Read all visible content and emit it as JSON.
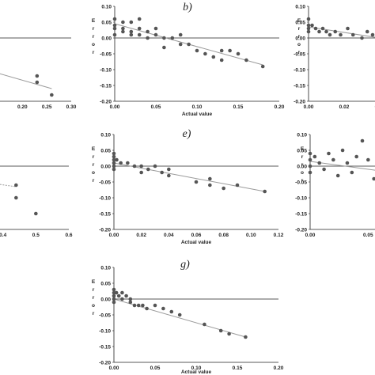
{
  "chart_data": [
    {
      "id": "a",
      "type": "scatter",
      "panel_label": "",
      "xlabel": "",
      "ylabel": "",
      "xlim": [
        0,
        0.3
      ],
      "ylim": [
        -0.2,
        0.1
      ],
      "xticks": [
        "0.20",
        "0.25",
        "0.30"
      ],
      "yticks": [],
      "x": [
        0.23,
        0.23,
        0.26
      ],
      "y": [
        -0.12,
        -0.14,
        -0.18
      ],
      "trendline": {
        "x": [
          0.0,
          0.26
        ],
        "y": [
          -0.045,
          -0.16
        ]
      }
    },
    {
      "id": "b",
      "type": "scatter",
      "panel_label": "b)",
      "xlabel": "Actual value",
      "ylabel": "Error",
      "xlim": [
        0,
        0.2
      ],
      "ylim": [
        -0.2,
        0.1
      ],
      "xticks": [
        "0.00",
        "0.05",
        "0.10",
        "0.15",
        "0.20"
      ],
      "yticks": [
        "0.10",
        "0.05",
        "0.00",
        "-0.05",
        "-0.10",
        "-0.15",
        "-0.20"
      ],
      "x": [
        0.0,
        0.0,
        0.0,
        0.0,
        0.01,
        0.01,
        0.01,
        0.02,
        0.02,
        0.02,
        0.03,
        0.03,
        0.03,
        0.04,
        0.04,
        0.05,
        0.05,
        0.06,
        0.06,
        0.07,
        0.08,
        0.08,
        0.09,
        0.1,
        0.11,
        0.12,
        0.13,
        0.13,
        0.14,
        0.15,
        0.16,
        0.18
      ],
      "y": [
        0.06,
        0.04,
        0.03,
        0.01,
        0.05,
        0.03,
        0.02,
        0.05,
        0.02,
        0.01,
        0.06,
        0.03,
        0.01,
        0.02,
        0.0,
        0.03,
        0.01,
        0.0,
        -0.03,
        0.0,
        0.01,
        -0.02,
        -0.02,
        -0.04,
        -0.05,
        -0.06,
        -0.04,
        -0.07,
        -0.04,
        -0.05,
        -0.07,
        -0.09
      ],
      "trendline": {
        "x": [
          0.0,
          0.18
        ],
        "y": [
          0.045,
          -0.085
        ]
      }
    },
    {
      "id": "c",
      "type": "scatter",
      "panel_label": "",
      "xlabel": "",
      "ylabel": "Error",
      "xlim": [
        0,
        0.04
      ],
      "ylim": [
        -0.2,
        0.1
      ],
      "xticks": [
        "0.00",
        "0.02",
        "0.04"
      ],
      "yticks": [
        "0.10",
        "0.05",
        "0.00",
        "-0.05",
        "-0.10",
        "-0.15",
        "-0.20"
      ],
      "x": [
        0.0,
        0.0,
        0.0,
        0.0,
        0.002,
        0.004,
        0.006,
        0.008,
        0.01,
        0.012,
        0.015,
        0.018,
        0.022,
        0.025,
        0.03,
        0.033,
        0.036,
        0.04
      ],
      "y": [
        0.06,
        0.04,
        0.03,
        0.02,
        0.04,
        0.03,
        0.02,
        0.03,
        0.02,
        0.01,
        0.02,
        0.01,
        0.03,
        0.01,
        0.0,
        0.02,
        0.01,
        0.0
      ],
      "trendline": {
        "x": [
          0.0,
          0.04
        ],
        "y": [
          0.035,
          0.0
        ]
      }
    },
    {
      "id": "d",
      "type": "scatter",
      "panel_label": "",
      "xlabel": "",
      "ylabel": "",
      "xlim": [
        0,
        0.6
      ],
      "ylim": [
        -0.2,
        0.1
      ],
      "xticks": [
        "0.4",
        "0.5",
        "0.6"
      ],
      "yticks": [],
      "x": [
        0.44,
        0.44,
        0.5
      ],
      "y": [
        -0.06,
        -0.1,
        -0.15
      ],
      "trendline": {
        "x": [
          0.0,
          0.44
        ],
        "y": [
          -0.0,
          -0.065
        ]
      }
    },
    {
      "id": "e",
      "type": "scatter",
      "panel_label": "e)",
      "xlabel": "Actual value",
      "ylabel": "Error",
      "xlim": [
        0,
        0.12
      ],
      "ylim": [
        -0.2,
        0.1
      ],
      "xticks": [
        "0.00",
        "0.02",
        "0.04",
        "0.06",
        "0.08",
        "0.10",
        "0.12"
      ],
      "yticks": [
        "0.10",
        "0.05",
        "0.00",
        "-0.05",
        "-0.10",
        "-0.15",
        "-0.20"
      ],
      "x": [
        0.0,
        0.0,
        0.0,
        0.0,
        0.0,
        0.0,
        0.002,
        0.005,
        0.01,
        0.015,
        0.02,
        0.02,
        0.025,
        0.03,
        0.035,
        0.04,
        0.04,
        0.06,
        0.07,
        0.07,
        0.08,
        0.09,
        0.11
      ],
      "y": [
        0.04,
        0.03,
        0.02,
        0.01,
        0.0,
        -0.01,
        0.02,
        0.01,
        0.01,
        0.0,
        0.0,
        -0.02,
        -0.01,
        0.0,
        -0.02,
        -0.01,
        -0.03,
        -0.05,
        -0.04,
        -0.06,
        -0.07,
        -0.06,
        -0.08
      ],
      "trendline": {
        "x": [
          0.0,
          0.11
        ],
        "y": [
          0.01,
          -0.08
        ]
      }
    },
    {
      "id": "f",
      "type": "scatter",
      "panel_label": "",
      "xlabel": "",
      "ylabel": "Error",
      "xlim": [
        0,
        0.06
      ],
      "ylim": [
        -0.2,
        0.1
      ],
      "xticks": [
        "0.00",
        "0.05"
      ],
      "yticks": [
        "0.10",
        "0.05",
        "0.00",
        "-0.05",
        "-0.10",
        "-0.15",
        "-0.20"
      ],
      "x": [
        0.0,
        0.0,
        0.0,
        0.0,
        0.004,
        0.008,
        0.012,
        0.016,
        0.02,
        0.024,
        0.028,
        0.032,
        0.036,
        0.04,
        0.045,
        0.05,
        0.055,
        0.058
      ],
      "y": [
        0.04,
        0.02,
        0.0,
        -0.02,
        0.03,
        0.01,
        -0.01,
        0.04,
        0.02,
        -0.03,
        0.05,
        0.01,
        -0.02,
        0.03,
        0.08,
        0.02,
        -0.04,
        0.01
      ],
      "trendline": {
        "x": [
          0.0,
          0.06
        ],
        "y": [
          0.015,
          -0.015
        ]
      }
    },
    {
      "id": "g",
      "type": "scatter",
      "panel_label": "g)",
      "xlabel": "Actual value",
      "ylabel": "Error",
      "xlim": [
        0,
        0.2
      ],
      "ylim": [
        -0.2,
        0.1
      ],
      "xticks": [
        "0.00",
        "0.05",
        "0.10",
        "0.15",
        "0.20"
      ],
      "yticks": [
        "0.10",
        "0.05",
        "0.00",
        "-0.05",
        "-0.10",
        "-0.15",
        "-0.20"
      ],
      "x": [
        0.0,
        0.0,
        0.0,
        0.0,
        0.0,
        0.003,
        0.006,
        0.01,
        0.01,
        0.015,
        0.02,
        0.02,
        0.025,
        0.03,
        0.035,
        0.04,
        0.05,
        0.06,
        0.07,
        0.08,
        0.11,
        0.13,
        0.14,
        0.16
      ],
      "y": [
        0.03,
        0.02,
        0.01,
        0.0,
        -0.01,
        0.02,
        0.01,
        0.02,
        0.0,
        0.01,
        0.0,
        -0.01,
        -0.02,
        -0.02,
        -0.02,
        -0.03,
        -0.02,
        -0.03,
        -0.04,
        -0.05,
        -0.08,
        -0.1,
        -0.11,
        -0.12
      ],
      "trendline": {
        "x": [
          0.0,
          0.16
        ],
        "y": [
          0.0,
          -0.12
        ]
      }
    }
  ]
}
